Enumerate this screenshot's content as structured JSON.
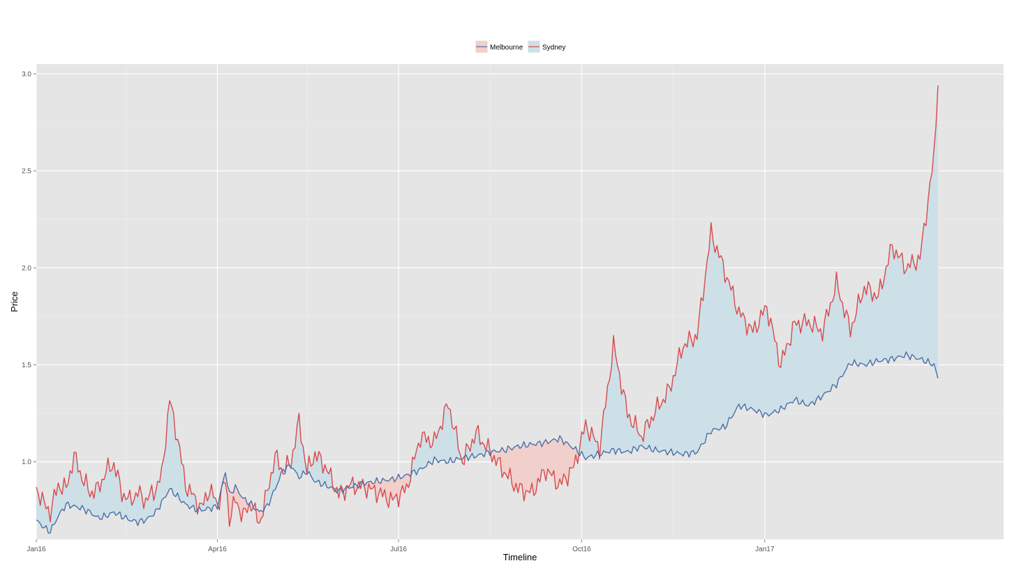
{
  "chart_data": {
    "type": "area",
    "xlabel": "Timeline",
    "ylabel": "Price",
    "xlim": [
      "2016-01-01",
      "2017-05-01"
    ],
    "ylim": [
      0.6,
      3.05
    ],
    "x_ticks": [
      {
        "date": "2016-01-01",
        "label": "Jan16"
      },
      {
        "date": "2016-04-01",
        "label": "Apr16"
      },
      {
        "date": "2016-07-01",
        "label": "Jul16"
      },
      {
        "date": "2016-10-01",
        "label": "Oct16"
      },
      {
        "date": "2017-01-01",
        "label": "Jan17"
      }
    ],
    "y_ticks": [
      {
        "value": 1.0,
        "label": "1.0"
      },
      {
        "value": 1.5,
        "label": "1.5"
      },
      {
        "value": 2.0,
        "label": "2.0"
      },
      {
        "value": 2.5,
        "label": "2.5"
      },
      {
        "value": 3.0,
        "label": "3.0"
      }
    ],
    "grid": true,
    "legend_position": "top",
    "legend": [
      {
        "label": "Melbourne",
        "fill": "#f1cfcb"
      },
      {
        "label": "Sydney",
        "fill": "#cde0e8"
      }
    ],
    "series": [
      {
        "name": "Melbourne",
        "color": "#4a6fa5",
        "points": [
          [
            "2016-01-01",
            0.7
          ],
          [
            "2016-01-05",
            0.66
          ],
          [
            "2016-01-08",
            0.64
          ],
          [
            "2016-01-12",
            0.72
          ],
          [
            "2016-01-16",
            0.78
          ],
          [
            "2016-01-20",
            0.77
          ],
          [
            "2016-01-24",
            0.76
          ],
          [
            "2016-01-28",
            0.74
          ],
          [
            "2016-02-01",
            0.71
          ],
          [
            "2016-02-05",
            0.72
          ],
          [
            "2016-02-09",
            0.74
          ],
          [
            "2016-02-13",
            0.72
          ],
          [
            "2016-02-17",
            0.7
          ],
          [
            "2016-02-21",
            0.69
          ],
          [
            "2016-02-25",
            0.7
          ],
          [
            "2016-03-01",
            0.74
          ],
          [
            "2016-03-04",
            0.79
          ],
          [
            "2016-03-08",
            0.86
          ],
          [
            "2016-03-12",
            0.82
          ],
          [
            "2016-03-16",
            0.78
          ],
          [
            "2016-03-20",
            0.76
          ],
          [
            "2016-03-24",
            0.75
          ],
          [
            "2016-03-28",
            0.76
          ],
          [
            "2016-04-01",
            0.77
          ],
          [
            "2016-04-05",
            0.95
          ],
          [
            "2016-04-07",
            0.83
          ],
          [
            "2016-04-10",
            0.87
          ],
          [
            "2016-04-14",
            0.81
          ],
          [
            "2016-04-18",
            0.78
          ],
          [
            "2016-04-22",
            0.74
          ],
          [
            "2016-04-26",
            0.77
          ],
          [
            "2016-04-30",
            0.86
          ],
          [
            "2016-05-04",
            0.96
          ],
          [
            "2016-05-08",
            0.98
          ],
          [
            "2016-05-12",
            0.92
          ],
          [
            "2016-05-16",
            0.95
          ],
          [
            "2016-05-20",
            0.9
          ],
          [
            "2016-05-25",
            0.88
          ],
          [
            "2016-06-01",
            0.85
          ],
          [
            "2016-06-07",
            0.87
          ],
          [
            "2016-06-14",
            0.89
          ],
          [
            "2016-06-21",
            0.9
          ],
          [
            "2016-06-28",
            0.91
          ],
          [
            "2016-07-05",
            0.93
          ],
          [
            "2016-07-12",
            0.96
          ],
          [
            "2016-07-19",
            1.01
          ],
          [
            "2016-07-26",
            1.0
          ],
          [
            "2016-08-02",
            1.02
          ],
          [
            "2016-08-09",
            1.03
          ],
          [
            "2016-08-16",
            1.05
          ],
          [
            "2016-08-23",
            1.06
          ],
          [
            "2016-08-30",
            1.08
          ],
          [
            "2016-09-06",
            1.09
          ],
          [
            "2016-09-13",
            1.1
          ],
          [
            "2016-09-20",
            1.12
          ],
          [
            "2016-09-27",
            1.07
          ],
          [
            "2016-10-03",
            1.02
          ],
          [
            "2016-10-10",
            1.04
          ],
          [
            "2016-10-17",
            1.06
          ],
          [
            "2016-10-24",
            1.05
          ],
          [
            "2016-10-31",
            1.08
          ],
          [
            "2016-11-07",
            1.06
          ],
          [
            "2016-11-14",
            1.05
          ],
          [
            "2016-11-21",
            1.04
          ],
          [
            "2016-11-28",
            1.05
          ],
          [
            "2016-12-05",
            1.16
          ],
          [
            "2016-12-12",
            1.18
          ],
          [
            "2016-12-19",
            1.29
          ],
          [
            "2016-12-26",
            1.27
          ],
          [
            "2017-01-02",
            1.24
          ],
          [
            "2017-01-09",
            1.27
          ],
          [
            "2017-01-16",
            1.32
          ],
          [
            "2017-01-23",
            1.29
          ],
          [
            "2017-01-30",
            1.34
          ],
          [
            "2017-02-06",
            1.4
          ],
          [
            "2017-02-13",
            1.51
          ],
          [
            "2017-02-20",
            1.5
          ],
          [
            "2017-02-27",
            1.52
          ],
          [
            "2017-03-06",
            1.53
          ],
          [
            "2017-03-13",
            1.55
          ],
          [
            "2017-03-20",
            1.53
          ],
          [
            "2017-03-27",
            1.5
          ],
          [
            "2017-03-29",
            1.43
          ]
        ]
      },
      {
        "name": "Sydney",
        "color": "#d9484b",
        "points": [
          [
            "2016-01-01",
            0.87
          ],
          [
            "2016-01-05",
            0.78
          ],
          [
            "2016-01-08",
            0.74
          ],
          [
            "2016-01-12",
            0.88
          ],
          [
            "2016-01-16",
            0.86
          ],
          [
            "2016-01-20",
            1.03
          ],
          [
            "2016-01-24",
            0.92
          ],
          [
            "2016-01-28",
            0.84
          ],
          [
            "2016-02-01",
            0.86
          ],
          [
            "2016-02-05",
            0.95
          ],
          [
            "2016-02-09",
            0.99
          ],
          [
            "2016-02-13",
            0.84
          ],
          [
            "2016-02-17",
            0.8
          ],
          [
            "2016-02-21",
            0.84
          ],
          [
            "2016-02-25",
            0.8
          ],
          [
            "2016-03-01",
            0.86
          ],
          [
            "2016-03-04",
            0.93
          ],
          [
            "2016-03-08",
            1.32
          ],
          [
            "2016-03-12",
            1.12
          ],
          [
            "2016-03-16",
            0.88
          ],
          [
            "2016-03-20",
            0.82
          ],
          [
            "2016-03-24",
            0.76
          ],
          [
            "2016-03-28",
            0.86
          ],
          [
            "2016-04-01",
            0.78
          ],
          [
            "2016-04-05",
            0.9
          ],
          [
            "2016-04-07",
            0.71
          ],
          [
            "2016-04-10",
            0.8
          ],
          [
            "2016-04-14",
            0.72
          ],
          [
            "2016-04-18",
            0.79
          ],
          [
            "2016-04-22",
            0.68
          ],
          [
            "2016-04-26",
            0.84
          ],
          [
            "2016-04-30",
            1.03
          ],
          [
            "2016-05-04",
            0.95
          ],
          [
            "2016-05-08",
            1.0
          ],
          [
            "2016-05-12",
            1.21
          ],
          [
            "2016-05-16",
            0.95
          ],
          [
            "2016-05-20",
            1.04
          ],
          [
            "2016-05-25",
            0.98
          ],
          [
            "2016-06-01",
            0.83
          ],
          [
            "2016-06-07",
            0.88
          ],
          [
            "2016-06-14",
            0.87
          ],
          [
            "2016-06-21",
            0.84
          ],
          [
            "2016-06-28",
            0.8
          ],
          [
            "2016-07-05",
            0.86
          ],
          [
            "2016-07-12",
            1.13
          ],
          [
            "2016-07-19",
            1.1
          ],
          [
            "2016-07-26",
            1.3
          ],
          [
            "2016-08-02",
            1.0
          ],
          [
            "2016-08-09",
            1.15
          ],
          [
            "2016-08-16",
            1.05
          ],
          [
            "2016-08-23",
            0.95
          ],
          [
            "2016-08-30",
            0.86
          ],
          [
            "2016-09-06",
            0.84
          ],
          [
            "2016-09-13",
            0.96
          ],
          [
            "2016-09-20",
            0.88
          ],
          [
            "2016-09-27",
            0.97
          ],
          [
            "2016-10-03",
            1.19
          ],
          [
            "2016-10-10",
            1.07
          ],
          [
            "2016-10-17",
            1.6
          ],
          [
            "2016-10-24",
            1.25
          ],
          [
            "2016-10-31",
            1.13
          ],
          [
            "2016-11-07",
            1.26
          ],
          [
            "2016-11-14",
            1.37
          ],
          [
            "2016-11-21",
            1.6
          ],
          [
            "2016-11-28",
            1.65
          ],
          [
            "2016-12-05",
            2.18
          ],
          [
            "2016-12-12",
            1.98
          ],
          [
            "2016-12-19",
            1.77
          ],
          [
            "2016-12-26",
            1.67
          ],
          [
            "2017-01-02",
            1.8
          ],
          [
            "2017-01-09",
            1.5
          ],
          [
            "2017-01-16",
            1.71
          ],
          [
            "2017-01-23",
            1.72
          ],
          [
            "2017-01-30",
            1.67
          ],
          [
            "2017-02-06",
            1.92
          ],
          [
            "2017-02-13",
            1.68
          ],
          [
            "2017-02-20",
            1.9
          ],
          [
            "2017-02-27",
            1.85
          ],
          [
            "2017-03-06",
            2.11
          ],
          [
            "2017-03-13",
            2.0
          ],
          [
            "2017-03-20",
            2.05
          ],
          [
            "2017-03-27",
            2.57
          ],
          [
            "2017-03-29",
            2.94
          ]
        ]
      }
    ]
  }
}
